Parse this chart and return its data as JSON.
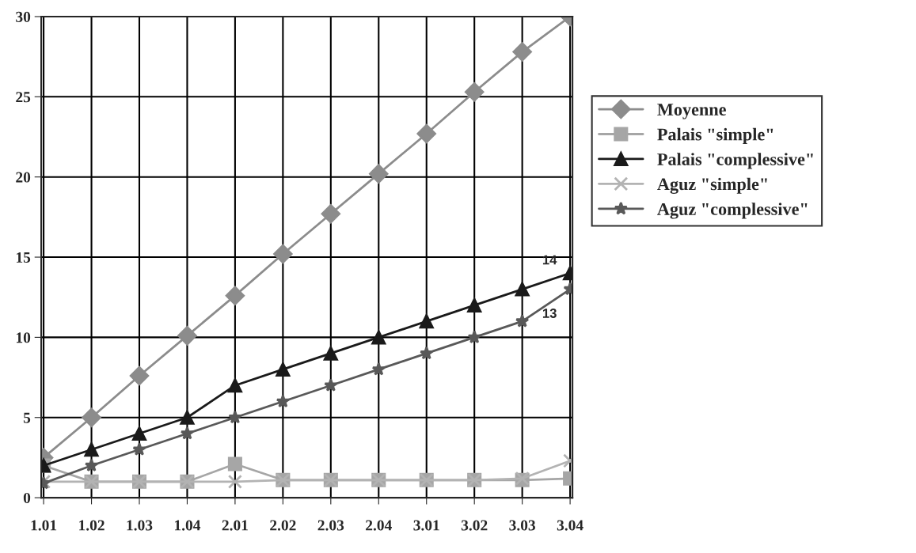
{
  "chart_data": {
    "type": "line",
    "categories": [
      "1.01",
      "1.02",
      "1.03",
      "1.04",
      "2.01",
      "2.02",
      "2.03",
      "2.04",
      "3.01",
      "3.02",
      "3.03",
      "3.04"
    ],
    "series": [
      {
        "name": "Moyenne",
        "color": "#8c8c8c",
        "marker": "diamond",
        "values": [
          2.5,
          5.0,
          7.6,
          10.1,
          12.6,
          15.2,
          17.7,
          20.2,
          22.7,
          25.3,
          27.8,
          30
        ]
      },
      {
        "name": "Palais \"simple\"",
        "color": "#a6a6a6",
        "marker": "square",
        "values": [
          2,
          1,
          1,
          1,
          2.1,
          1.1,
          1.1,
          1.1,
          1.1,
          1.1,
          1.1,
          1.2
        ]
      },
      {
        "name": "Palais \"complessive\"",
        "color": "#1a1a1a",
        "marker": "triangle",
        "values": [
          2,
          3,
          4,
          5,
          7,
          8,
          9,
          10,
          11,
          12,
          13,
          14
        ]
      },
      {
        "name": "Aguz \"simple\"",
        "color": "#b3b3b3",
        "marker": "cross",
        "values": [
          1,
          1,
          1,
          1,
          1,
          1.1,
          1.1,
          1.1,
          1.1,
          1.1,
          1.2,
          2.3
        ]
      },
      {
        "name": "Aguz \"complessive\"",
        "color": "#595959",
        "marker": "star",
        "values": [
          0.9,
          2,
          3,
          4,
          5,
          6,
          7,
          8,
          9,
          10,
          11,
          13
        ]
      }
    ],
    "annotations": [
      {
        "text": "14",
        "x": "3.04",
        "y": 14
      },
      {
        "text": "13",
        "x": "3.04",
        "y": 13
      }
    ],
    "ylim": [
      0,
      30
    ],
    "yticks": [
      0,
      5,
      10,
      15,
      20,
      25,
      30
    ],
    "grid": true,
    "legend": "right",
    "line_style": "solid"
  }
}
